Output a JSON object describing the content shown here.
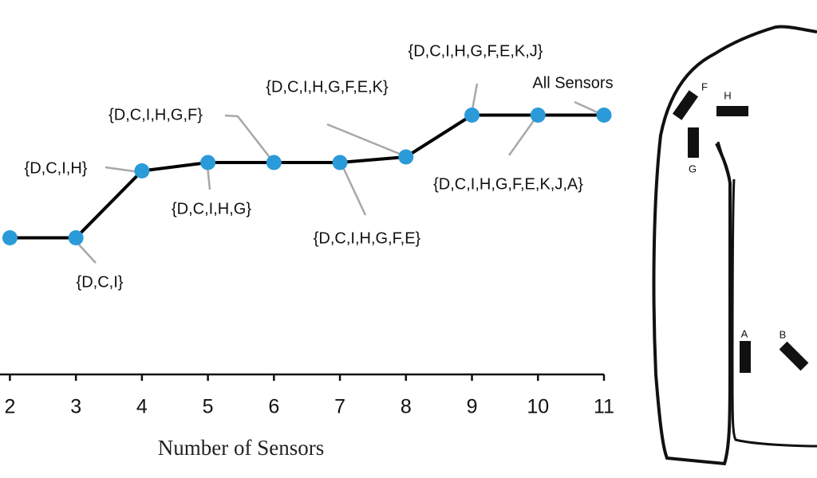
{
  "chart_data": {
    "type": "line",
    "x_label": "Number of Sensors",
    "x": [
      2,
      3,
      4,
      5,
      6,
      7,
      8,
      9,
      10,
      11
    ],
    "values": [
      49,
      49,
      73,
      76,
      76,
      76,
      78,
      93,
      93,
      93
    ],
    "line_color": "#000000",
    "marker_color": "#2b9ad8",
    "xlim": [
      1.85,
      11
    ],
    "ylim": [
      0,
      100
    ],
    "xticks": [
      2,
      3,
      4,
      5,
      6,
      7,
      8,
      9,
      10,
      11
    ],
    "annotations": [
      "{D,C,I}",
      "{D,C,I,H}",
      "{D,C,I,H,G}",
      "{D,C,I,H,G,F}",
      "{D,C,I,H,G,F,E}",
      "{D,C,I,H,G,F,E,K}",
      "{D,C,I,H,G,F,E,K,J}",
      "{D,C,I,H,G,F,E,K,J,A}",
      "All Sensors"
    ]
  },
  "diagram": {
    "sensor_labels": [
      "F",
      "H",
      "G",
      "A",
      "B"
    ]
  }
}
